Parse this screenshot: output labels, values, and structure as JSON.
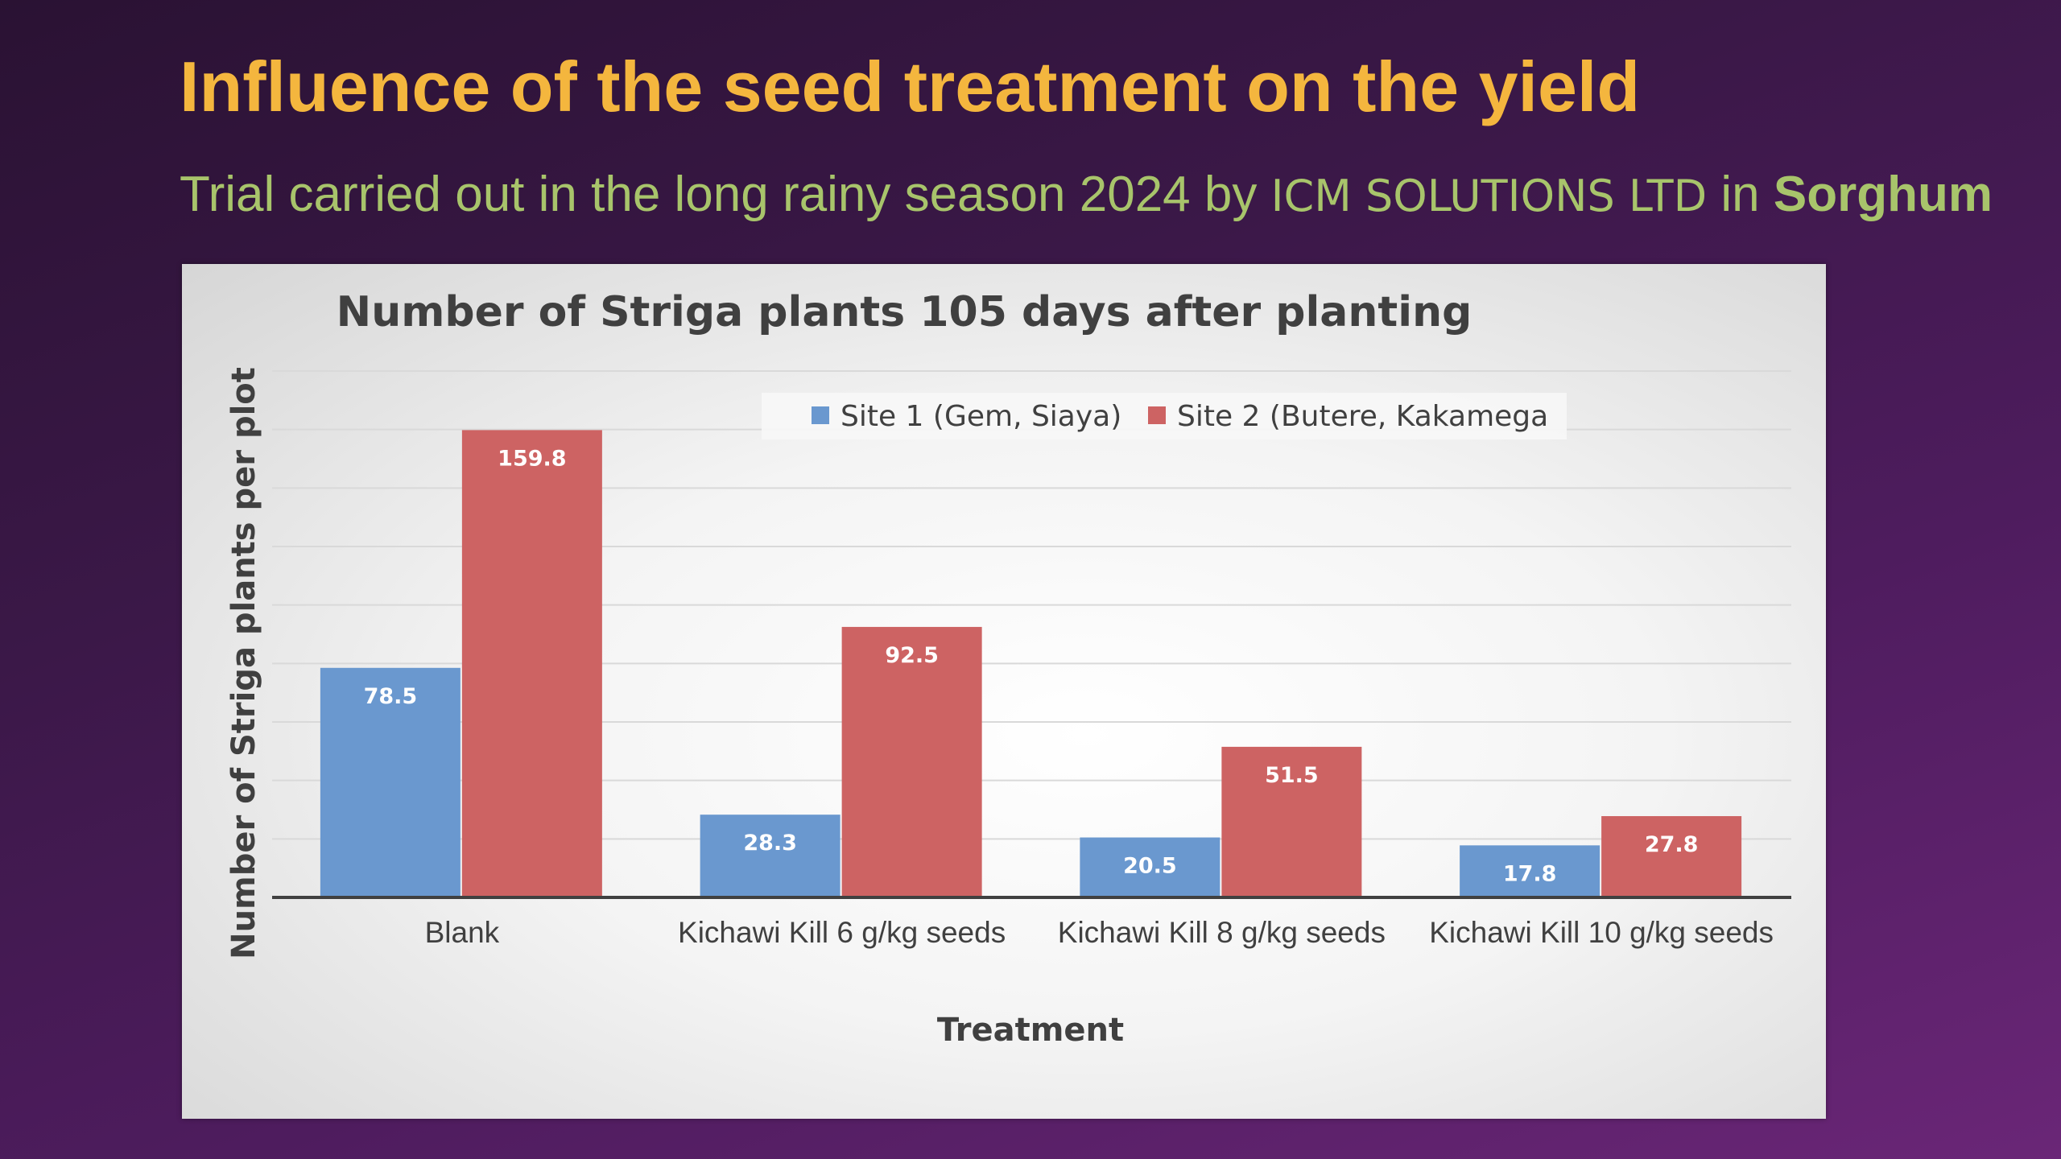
{
  "slide": {
    "title": "Influence of the seed treatment on the yield",
    "subtitle_prefix": "Trial carried out in the long rainy season 2024 by ",
    "subtitle_company": "ICM SOLUTIONS LTD",
    "subtitle_mid": " in ",
    "subtitle_crop": "Sorghum"
  },
  "colors": {
    "title": "#f4b63e",
    "subtitle": "#a8c46b",
    "series_1": "#6a98cf",
    "series_2": "#cd6363"
  },
  "chart_data": {
    "type": "bar",
    "title": "Number of Striga plants 105 days after planting",
    "xlabel": "Treatment",
    "ylabel": "Number of Striga plants per plot",
    "categories": [
      "Blank",
      "Kichawi Kill 6 g/kg seeds",
      "Kichawi Kill 8 g/kg seeds",
      "Kichawi Kill 10 g/kg seeds"
    ],
    "series": [
      {
        "name": "Site 1 (Gem, Siaya)",
        "values": [
          78.5,
          28.3,
          20.5,
          17.8
        ]
      },
      {
        "name": "Site 2 (Butere, Kakamega",
        "values": [
          159.8,
          92.5,
          51.5,
          27.8
        ]
      }
    ],
    "ylim": [
      0,
      180
    ],
    "ytick_step": 20,
    "ytick_labels_shown": false,
    "grid": true,
    "legend_position": "top-center",
    "data_labels": true
  }
}
